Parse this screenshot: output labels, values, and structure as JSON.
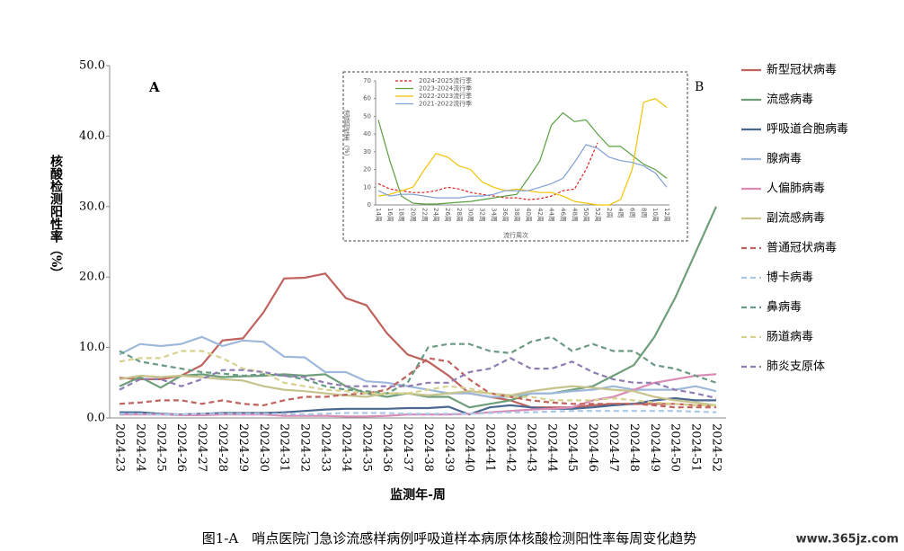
{
  "chart_data": [
    {
      "type": "line",
      "panel_label": "A",
      "x_label": "监测年-周",
      "y_label": "核酸检测阳性率（%）",
      "caption": "图1-A　哨点医院门急诊流感样病例呼吸道样本病原体核酸检测阳性率每周变化趋势",
      "categories": [
        "2024-23",
        "2024-24",
        "2024-25",
        "2024-26",
        "2024-27",
        "2024-28",
        "2024-29",
        "2024-30",
        "2024-31",
        "2024-32",
        "2024-33",
        "2024-34",
        "2024-35",
        "2024-36",
        "2024-37",
        "2024-38",
        "2024-39",
        "2024-40",
        "2024-41",
        "2024-42",
        "2024-43",
        "2024-44",
        "2024-45",
        "2024-46",
        "2024-47",
        "2024-48",
        "2024-49",
        "2024-50",
        "2024-51",
        "2024-52"
      ],
      "ylim": [
        0,
        50
      ],
      "yticks": [
        {
          "value": 0,
          "label": "0.0"
        },
        {
          "value": 10,
          "label": "10.0"
        },
        {
          "value": 20,
          "label": "20.0"
        },
        {
          "value": 30,
          "label": "30.0"
        },
        {
          "value": 40,
          "label": "40.0"
        },
        {
          "value": 50,
          "label": "50.0"
        }
      ],
      "grid": false,
      "legend": "right",
      "series": [
        {
          "name": "新型冠状病毒",
          "color": "#c0625d",
          "dashed": false,
          "values": [
            5.7,
            5.5,
            5.5,
            6,
            7.5,
            11,
            11.3,
            15,
            19.8,
            19.9,
            20.5,
            17,
            16,
            12,
            9,
            8,
            6,
            3.5,
            3,
            2.5,
            1.5,
            1.5,
            1.5,
            1.8,
            2,
            2,
            2,
            2,
            1.8,
            1.8
          ]
        },
        {
          "name": "流感病毒",
          "color": "#6e9e7a",
          "dashed": false,
          "values": [
            4.5,
            5.8,
            4.3,
            6,
            6.2,
            5.8,
            5.9,
            6,
            6.2,
            6,
            6.2,
            4.5,
            3.5,
            3,
            3.5,
            3,
            3,
            1.5,
            2,
            2.5,
            3.5,
            3.5,
            4,
            4.5,
            6,
            7.5,
            11.5,
            17,
            23.5,
            30
          ]
        },
        {
          "name": "呼吸道合胞病毒",
          "color": "#4a6890",
          "dashed": false,
          "values": [
            0.8,
            0.8,
            0.6,
            0.5,
            0.6,
            0.7,
            0.7,
            0.7,
            0.8,
            1,
            1.2,
            1.3,
            1.3,
            1.3,
            1.4,
            1.4,
            1.6,
            0.5,
            1.5,
            1.8,
            1.5,
            1.3,
            1.3,
            1.5,
            1.8,
            2,
            2.5,
            2.8,
            2.5,
            2.5
          ]
        },
        {
          "name": "腺病毒",
          "color": "#9db8da",
          "dashed": false,
          "values": [
            9,
            10.5,
            10.2,
            10.5,
            11.5,
            10.2,
            11,
            10.8,
            8.7,
            8.6,
            6.5,
            6.5,
            5.2,
            5,
            4.5,
            4,
            3.5,
            3.5,
            3,
            3,
            3.5,
            3.5,
            3.8,
            4,
            4.5,
            4,
            4,
            4,
            4.5,
            3.8
          ]
        },
        {
          "name": "人偏肺病毒",
          "color": "#d98cb6",
          "dashed": false,
          "values": [
            0.5,
            0.5,
            0.5,
            0.4,
            0.4,
            0.5,
            0.5,
            0.5,
            0.3,
            0.3,
            0.3,
            0.2,
            0.2,
            0.3,
            0.5,
            0.5,
            0.5,
            0.6,
            0.8,
            1,
            1.2,
            1.3,
            1.5,
            2.5,
            3,
            4,
            5,
            5.5,
            6,
            6.2
          ]
        },
        {
          "name": "副流感病毒",
          "color": "#c6c38c",
          "dashed": false,
          "values": [
            5.5,
            6,
            5.8,
            6,
            5.8,
            5.5,
            5.3,
            4.5,
            4,
            3.8,
            3.5,
            3.2,
            3,
            3.5,
            3.5,
            3.2,
            3.5,
            3.8,
            3.5,
            3.2,
            3.8,
            4.2,
            4.5,
            4.3,
            4,
            3.8,
            3,
            2.5,
            2.2,
            1.8
          ]
        },
        {
          "name": "普通冠状病毒",
          "color": "#c0625d",
          "dashed": true,
          "values": [
            2,
            2.2,
            2.5,
            2.5,
            2,
            2.5,
            2,
            1.8,
            2.5,
            3,
            3,
            3.3,
            3.5,
            4,
            6,
            8.5,
            8,
            5.5,
            3.5,
            3,
            2.5,
            2.2,
            2,
            2,
            2,
            2,
            1.8,
            1.5,
            1.5,
            1.5
          ]
        },
        {
          "name": "博卡病毒",
          "color": "#abc7e6",
          "dashed": true,
          "values": [
            0.6,
            0.6,
            0.5,
            0.5,
            0.6,
            0.6,
            0.6,
            0.6,
            0.6,
            0.5,
            0.6,
            0.7,
            0.7,
            0.7,
            0.6,
            0.6,
            0.6,
            0.6,
            0.7,
            0.8,
            0.8,
            0.9,
            1,
            1,
            1,
            1,
            1,
            1,
            0.9,
            0.8
          ]
        },
        {
          "name": "鼻病毒",
          "color": "#6a9a82",
          "dashed": true,
          "values": [
            9.5,
            8,
            7.5,
            7,
            6.5,
            6.3,
            6,
            6.2,
            6,
            5.5,
            4.5,
            4,
            3.8,
            3.5,
            5,
            10,
            10.5,
            10.5,
            9.5,
            9.2,
            10.8,
            11.5,
            9.5,
            10.5,
            9.5,
            9.5,
            7.5,
            7,
            6,
            5
          ]
        },
        {
          "name": "肠道病毒",
          "color": "#d6d28e",
          "dashed": true,
          "values": [
            8,
            8.5,
            8.5,
            9.5,
            9.5,
            8.5,
            7,
            6.5,
            5,
            4.5,
            4,
            3.8,
            3.5,
            3.5,
            3.5,
            4,
            4.5,
            4.2,
            3.5,
            3,
            3,
            2.5,
            2.5,
            2.5,
            2.8,
            2.5,
            2.2,
            2,
            1.8,
            1.8
          ]
        },
        {
          "name": "肺炎支原体",
          "color": "#8e7cb2",
          "dashed": true,
          "values": [
            4,
            5.5,
            5.5,
            4.5,
            5.5,
            6.8,
            6.8,
            6.5,
            6,
            5.8,
            5,
            4.5,
            4.5,
            4.5,
            4.5,
            5,
            5,
            6.5,
            7,
            8.5,
            7,
            7,
            8,
            6.5,
            5.5,
            5,
            5,
            4,
            3.5,
            2.8
          ]
        }
      ]
    },
    {
      "type": "line",
      "panel_label": "B",
      "x_label": "流行周次",
      "y_label": "流感阳性率（%）",
      "categories": [
        "14周",
        "16周",
        "18周",
        "20周",
        "22周",
        "24周",
        "26周",
        "28周",
        "30周",
        "32周",
        "34周",
        "36周",
        "38周",
        "40周",
        "42周",
        "44周",
        "46周",
        "48周",
        "50周",
        "52周",
        "2周",
        "4周",
        "6周",
        "8周",
        "10周",
        "12周"
      ],
      "ylim": [
        0,
        70
      ],
      "yticks": [
        0,
        10,
        20,
        30,
        40,
        50,
        60,
        70
      ],
      "grid": false,
      "legend": "top-left",
      "series": [
        {
          "name": "2024-2025流行季",
          "color": "#e02020",
          "dashed": true,
          "values": [
            12,
            9,
            8,
            7,
            7,
            8,
            10,
            9,
            7,
            6,
            5,
            4,
            4,
            3,
            3.5,
            5,
            8,
            9,
            20,
            35,
            null,
            null,
            null,
            null,
            null,
            null
          ]
        },
        {
          "name": "2023-2024流行季",
          "color": "#5aa040",
          "dashed": false,
          "values": [
            48,
            25,
            5,
            1,
            0.5,
            0.5,
            1,
            1.5,
            2,
            3,
            4,
            5,
            6,
            15,
            25,
            45,
            52,
            47,
            48,
            40,
            33,
            33,
            28,
            23,
            20,
            15
          ]
        },
        {
          "name": "2022-2023流行季",
          "color": "#f2c200",
          "dashed": false,
          "values": [
            5,
            6,
            8,
            10,
            20,
            29,
            27,
            22,
            20,
            13,
            10,
            8,
            9,
            8,
            7,
            7,
            5,
            2,
            1,
            0,
            0,
            3,
            20,
            58,
            60,
            55
          ]
        },
        {
          "name": "2021-2022流行季",
          "color": "#7f9fd4",
          "dashed": false,
          "values": [
            8,
            5,
            6,
            6,
            5,
            4,
            4,
            4,
            5,
            5,
            6,
            8,
            8,
            8,
            10,
            12,
            15,
            24,
            34,
            32,
            27,
            25,
            24,
            22,
            18,
            10
          ]
        }
      ]
    }
  ],
  "watermark": "www.365jz.com"
}
